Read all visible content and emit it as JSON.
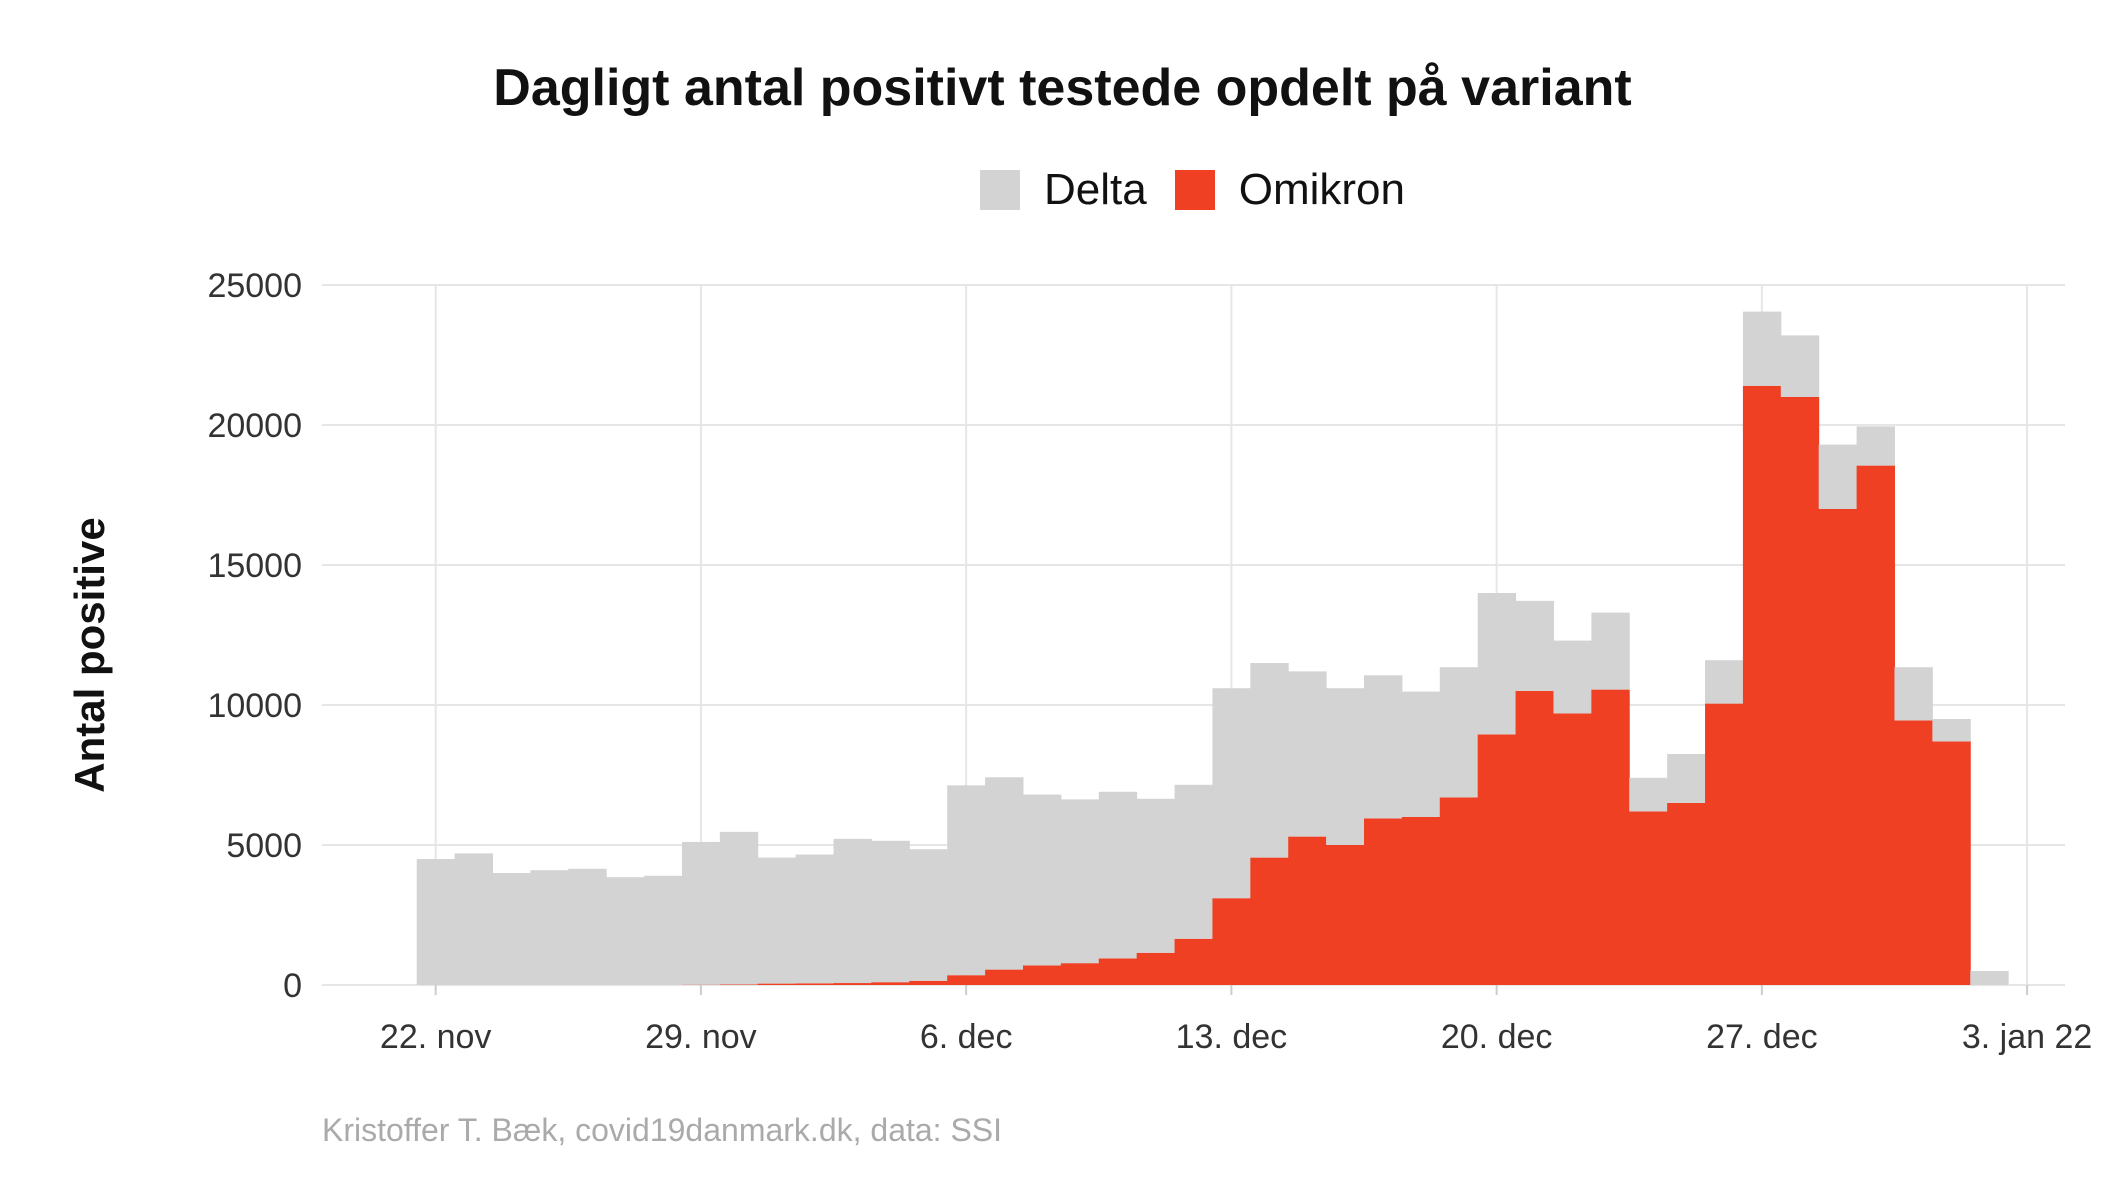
{
  "chart_data": {
    "type": "bar",
    "stacked": true,
    "title": "Dagligt antal positivt testede opdelt på variant",
    "ylabel": "Antal positive",
    "xlabel": "",
    "caption": "Kristoffer T. Bæk, covid19danmark.dk, data: SSI",
    "legend_position": "top",
    "grid": true,
    "ylim": [
      0,
      25000
    ],
    "yticks": [
      0,
      5000,
      10000,
      15000,
      20000,
      25000
    ],
    "xlim": [
      "2021-11-19",
      "2022-01-04"
    ],
    "xticks": [
      {
        "date": "2021-11-22",
        "label": "22. nov"
      },
      {
        "date": "2021-11-29",
        "label": "29. nov"
      },
      {
        "date": "2021-12-06",
        "label": "6. dec"
      },
      {
        "date": "2021-12-13",
        "label": "13. dec"
      },
      {
        "date": "2021-12-20",
        "label": "20. dec"
      },
      {
        "date": "2021-12-27",
        "label": "27. dec"
      },
      {
        "date": "2022-01-03",
        "label": "3. jan 22"
      }
    ],
    "dates": [
      "2021-11-22",
      "2021-11-23",
      "2021-11-24",
      "2021-11-25",
      "2021-11-26",
      "2021-11-27",
      "2021-11-28",
      "2021-11-29",
      "2021-11-30",
      "2021-12-01",
      "2021-12-02",
      "2021-12-03",
      "2021-12-04",
      "2021-12-05",
      "2021-12-06",
      "2021-12-07",
      "2021-12-08",
      "2021-12-09",
      "2021-12-10",
      "2021-12-11",
      "2021-12-12",
      "2021-12-13",
      "2021-12-14",
      "2021-12-15",
      "2021-12-16",
      "2021-12-17",
      "2021-12-18",
      "2021-12-19",
      "2021-12-20",
      "2021-12-21",
      "2021-12-22",
      "2021-12-23",
      "2021-12-24",
      "2021-12-25",
      "2021-12-26",
      "2021-12-27",
      "2021-12-28",
      "2021-12-29",
      "2021-12-30",
      "2021-12-31",
      "2022-01-01",
      "2022-01-02"
    ],
    "series": [
      {
        "name": "Delta",
        "color": "#d3d3d3",
        "values": [
          4500,
          4700,
          4000,
          4100,
          4150,
          3850,
          3900,
          5100,
          5450,
          4500,
          4600,
          5150,
          5050,
          4700,
          6780,
          6870,
          6100,
          5850,
          5950,
          5500,
          5500,
          7500,
          6950,
          5900,
          5600,
          5110,
          4480,
          4650,
          5050,
          3220,
          2600,
          2750,
          1200,
          1750,
          1550,
          2650,
          2200,
          2300,
          1400,
          1900,
          800,
          500
        ]
      },
      {
        "name": "Omikron",
        "color": "#ef4024",
        "values": [
          0,
          0,
          0,
          0,
          0,
          0,
          0,
          10,
          20,
          50,
          60,
          70,
          100,
          150,
          350,
          550,
          700,
          780,
          950,
          1150,
          1650,
          3100,
          4550,
          5300,
          5000,
          5950,
          6000,
          6700,
          8950,
          10500,
          9700,
          10550,
          6200,
          6500,
          10050,
          21400,
          21000,
          17000,
          18550,
          9450,
          8700,
          0
        ]
      }
    ]
  }
}
